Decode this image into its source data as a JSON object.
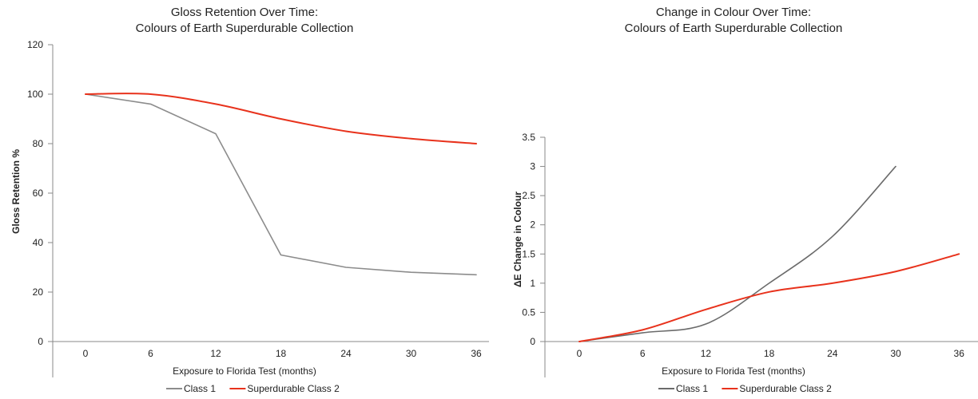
{
  "chart_data": [
    {
      "type": "line",
      "title": [
        "Gloss Retention Over Time:",
        "Colours of Earth Superdurable Collection"
      ],
      "xlabel": "Exposure to Florida Test (months)",
      "ylabel": "Gloss Retention %",
      "categories": [
        "0",
        "6",
        "12",
        "18",
        "24",
        "30",
        "36"
      ],
      "y_ticks": [
        "0",
        "20",
        "40",
        "60",
        "80",
        "100",
        "120"
      ],
      "ylim": [
        0,
        120
      ],
      "legend_position": "bottom",
      "series": [
        {
          "name": "Class 1",
          "values": [
            100,
            96,
            84,
            35,
            30,
            28,
            27
          ],
          "color": "#8c8c8c",
          "smooth": false
        },
        {
          "name": "Superdurable Class 2",
          "values": [
            100,
            100,
            96,
            90,
            85,
            82,
            80
          ],
          "color": "#e8321c",
          "smooth": true
        }
      ]
    },
    {
      "type": "line",
      "title": [
        "Change in Colour Over Time:",
        "Colours of Earth Superdurable Collection"
      ],
      "xlabel": "Exposure to Florida Test (months)",
      "ylabel": "ΔE Change in Colour",
      "categories": [
        "0",
        "6",
        "12",
        "18",
        "24",
        "30",
        "36"
      ],
      "y_ticks": [
        "0",
        "0.5",
        "1",
        "1.5",
        "2",
        "2.5",
        "3",
        "3.5"
      ],
      "ylim": [
        0,
        3.5
      ],
      "legend_position": "bottom",
      "series": [
        {
          "name": "Class 1",
          "values": [
            0,
            0.15,
            0.3,
            1.0,
            1.8,
            3.0,
            null
          ],
          "color": "#6b6b6b",
          "smooth": true
        },
        {
          "name": "Superdurable Class 2",
          "values": [
            0,
            0.2,
            0.55,
            0.85,
            1.0,
            1.2,
            1.5
          ],
          "color": "#e8321c",
          "smooth": true
        }
      ]
    }
  ]
}
